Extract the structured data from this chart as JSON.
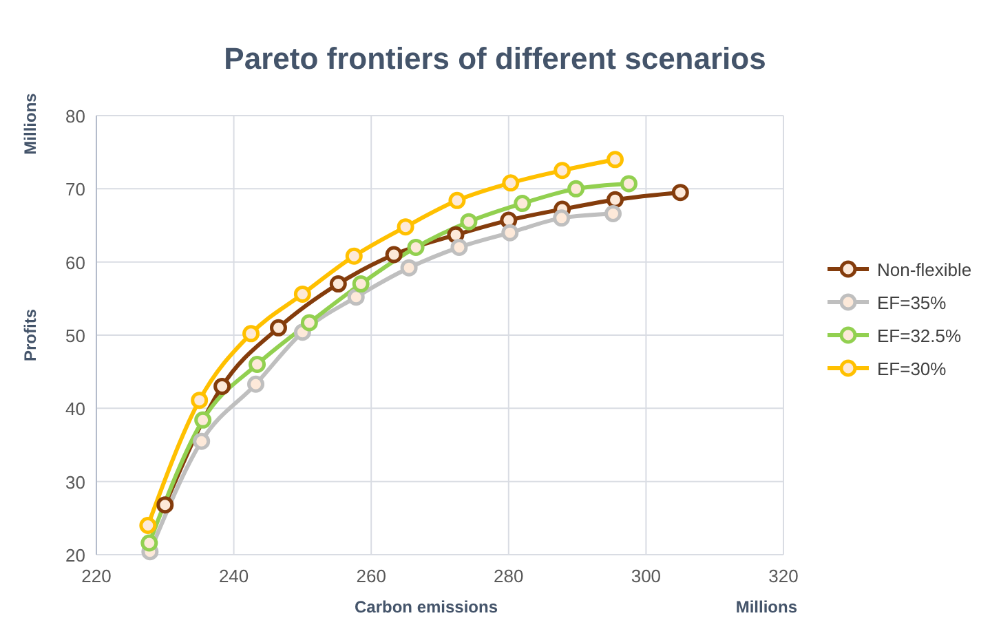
{
  "chart_data": {
    "type": "line",
    "title": "Pareto frontiers of different scenarios",
    "xlabel": "Carbon emissions",
    "ylabel": "Profits",
    "annotations": [
      "Millions",
      "Millions"
    ],
    "xlim": [
      220,
      320
    ],
    "xticks": [
      220,
      240,
      260,
      280,
      300,
      320
    ],
    "ylim": [
      20,
      80
    ],
    "yticks": [
      20,
      30,
      40,
      50,
      60,
      70,
      80
    ],
    "grid": true,
    "legend": "right",
    "marker": "circle",
    "line_style": "solid",
    "series": [
      {
        "name": "Non-flexible",
        "color": "#843c0c",
        "x": [
          230,
          238.3,
          246.5,
          255.2,
          263.3,
          272.3,
          280,
          287.8,
          295.5,
          305
        ],
        "values": [
          26.8,
          43,
          51,
          57,
          61,
          63.7,
          65.7,
          67.2,
          68.5,
          69.5
        ]
      },
      {
        "name": "EF=35%",
        "color": "#bfbfbf",
        "x": [
          227.8,
          235.3,
          243.2,
          250,
          257.8,
          265.5,
          272.8,
          280.2,
          287.7,
          295.2
        ],
        "values": [
          20.4,
          35.5,
          43.3,
          50.4,
          55.2,
          59.2,
          62,
          64,
          66,
          66.6
        ]
      },
      {
        "name": "EF=32.5%",
        "color": "#92d050",
        "x": [
          227.7,
          235.5,
          243.4,
          251,
          258.5,
          266.5,
          274.2,
          282,
          289.8,
          297.5
        ],
        "values": [
          21.6,
          38.4,
          46,
          51.7,
          57,
          62,
          65.5,
          68,
          70,
          70.7
        ]
      },
      {
        "name": "EF=30%",
        "color": "#ffc000",
        "x": [
          227.5,
          235,
          242.5,
          250,
          257.5,
          265,
          272.5,
          280.3,
          287.8,
          295.5
        ],
        "values": [
          24,
          41.1,
          50.2,
          55.6,
          60.8,
          64.8,
          68.4,
          70.8,
          72.5,
          74
        ]
      }
    ]
  }
}
